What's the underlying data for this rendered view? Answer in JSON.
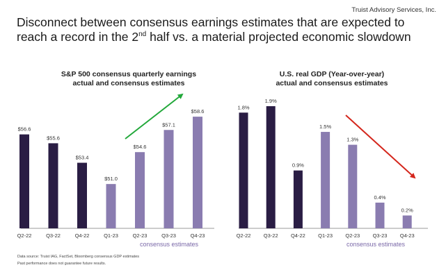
{
  "header": {
    "brand": "Truist Advisory Services, Inc.",
    "title_part1": "Disconnect between consensus earnings estimates that are expected to reach a record in the 2",
    "title_sup": "nd",
    "title_part2": " half vs. a material projected economic slowdown"
  },
  "colors": {
    "actual": "#2a1d44",
    "estimate": "#8a7cb0",
    "up_arrow": "#22a83a",
    "down_arrow": "#d4261c",
    "axis_label": "#7a68a8"
  },
  "chart_data": [
    {
      "type": "bar",
      "title_line1": "S&P 500 consensus quarterly earnings",
      "title_line2": "actual and consensus estimates",
      "categories": [
        "Q2-22",
        "Q3-22",
        "Q4-22",
        "Q1-23",
        "Q2-23",
        "Q3-23",
        "Q4-23"
      ],
      "values": [
        56.6,
        55.6,
        53.4,
        51.0,
        54.6,
        57.1,
        58.6
      ],
      "labels": [
        "$56.6",
        "$55.6",
        "$53.4",
        "$51.0",
        "$54.6",
        "$57.1",
        "$58.6"
      ],
      "estimate_from_index": 3,
      "axis_note": "consensus estimates",
      "trend_arrow": "up",
      "ylim": [
        46,
        59
      ]
    },
    {
      "type": "bar",
      "title_line1": "U.S. real GDP  (Year-over-year)",
      "title_line2": "actual and consensus estimates",
      "categories": [
        "Q2-22",
        "Q3-22",
        "Q4-22",
        "Q1-23",
        "Q2-23",
        "Q3-23",
        "Q4-23"
      ],
      "values": [
        1.8,
        1.9,
        0.9,
        1.5,
        1.3,
        0.4,
        0.2
      ],
      "labels": [
        "1.8%",
        "1.9%",
        "0.9%",
        "1.5%",
        "1.3%",
        "0.4%",
        "0.2%"
      ],
      "estimate_from_index": 3,
      "axis_note": "consensus estimates",
      "trend_arrow": "down",
      "ylim": [
        0,
        1.9
      ]
    }
  ],
  "footer": {
    "source": "Data source: Truist IAG, FactSet, Bloomberg consensus GDP estimates",
    "disclaimer": "Past performance does not guarantee future results."
  }
}
